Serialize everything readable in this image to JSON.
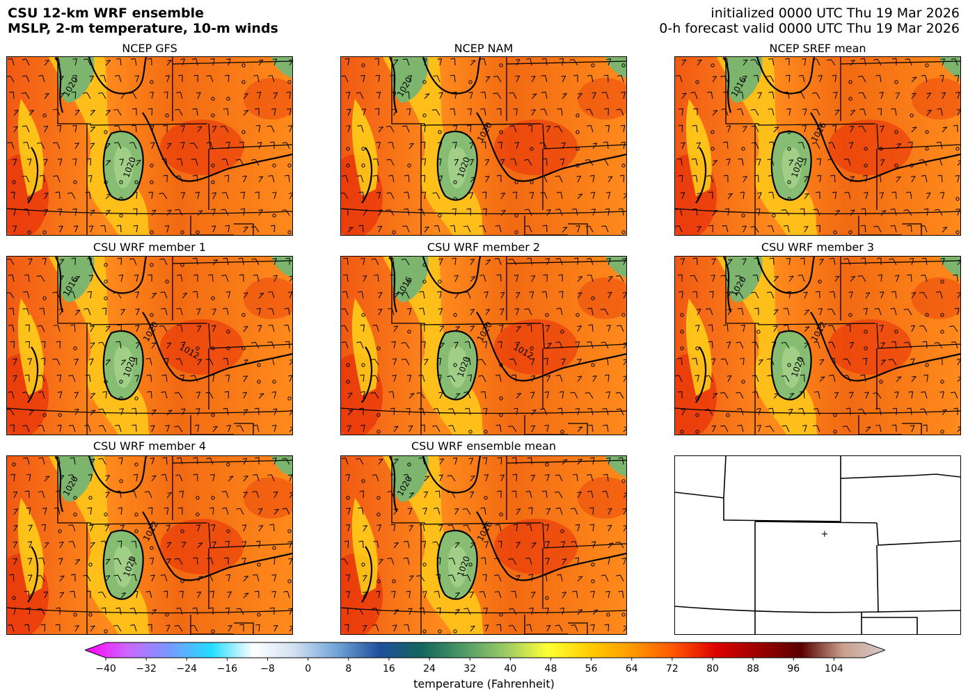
{
  "header": {
    "title_line1": "CSU 12-km WRF ensemble",
    "title_line2": "MSLP, 2-m temperature, 10-m winds",
    "init_line": "initialized 0000 UTC Thu 19 Mar 2026",
    "valid_line": "0-h forecast valid 0000 UTC Thu 19 Mar 2026"
  },
  "panels": [
    {
      "title": "NCEP GFS",
      "contour_labels": [
        "1020",
        "1020"
      ]
    },
    {
      "title": "NCEP NAM",
      "contour_labels": [
        "1020",
        "1020",
        "1020"
      ]
    },
    {
      "title": "NCEP SREF mean",
      "contour_labels": [
        "1016",
        "1020",
        "1016"
      ]
    },
    {
      "title": "CSU WRF member 1",
      "contour_labels": [
        "1016",
        "1020",
        "1020",
        "1012"
      ]
    },
    {
      "title": "CSU WRF member 2",
      "contour_labels": [
        "1016",
        "1020",
        "1020",
        "1012"
      ]
    },
    {
      "title": "CSU WRF member 3",
      "contour_labels": [
        "1020",
        "1020",
        "1012"
      ]
    },
    {
      "title": "CSU WRF member 4",
      "contour_labels": [
        "1020",
        "1020",
        "1012"
      ]
    },
    {
      "title": "CSU WRF ensemble mean",
      "contour_labels": [
        "1020",
        "1020",
        "1016"
      ]
    },
    {
      "title": "",
      "contour_labels": []
    }
  ],
  "colorbar": {
    "label": "temperature (Fahrenheit)",
    "min": -40,
    "max": 110,
    "ticks": [
      "−40",
      "−32",
      "−24",
      "−16",
      "−8",
      "0",
      "8",
      "16",
      "24",
      "32",
      "40",
      "48",
      "56",
      "64",
      "72",
      "80",
      "88",
      "96",
      "104"
    ],
    "tick_values": [
      -40,
      -32,
      -24,
      -16,
      -8,
      0,
      8,
      16,
      24,
      32,
      40,
      48,
      56,
      64,
      72,
      80,
      88,
      96,
      104
    ],
    "colors": [
      "#ff00ff",
      "#cc66ff",
      "#7799ff",
      "#22ddff",
      "#ffffff",
      "#cfdff0",
      "#6fa3d6",
      "#1e4f9c",
      "#14665c",
      "#4f9b66",
      "#9ccc66",
      "#ffff33",
      "#ffcc00",
      "#ff9900",
      "#ff5500",
      "#dd0000",
      "#9b0000",
      "#5a0000",
      "#c9a08f",
      "#d8cac8"
    ]
  },
  "colors": {
    "warm": "#ff7a1a",
    "hot": "#f03a0a",
    "yellow": "#ffd51a",
    "green": "#6fae6a"
  }
}
